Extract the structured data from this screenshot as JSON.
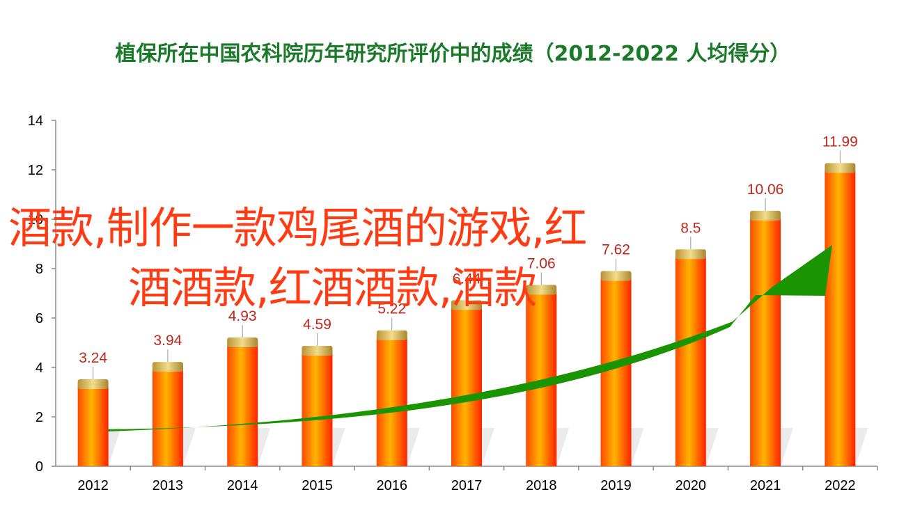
{
  "title": "植保所在中国农科院历年研究所评价中的成绩（2012-2022  人均得分）",
  "overlay": {
    "line1": "酒款,制作一款鸡尾酒的游戏,红",
    "line2": "酒酒款,红酒酒款,酒款"
  },
  "colors": {
    "bar_light": "#ffb400",
    "bar_dark": "#ff2a00",
    "cap": "#d9b64c",
    "arrow": "#1a9400",
    "label": "#c0261a",
    "overlay": "#ff3b14",
    "title": "#1a7a2a"
  },
  "chart_data": {
    "type": "bar",
    "title": "植保所在中国农科院历年研究所评价中的成绩（2012-2022  人均得分）",
    "categories": [
      "2012",
      "2013",
      "2014",
      "2015",
      "2016",
      "2017",
      "2018",
      "2019",
      "2020",
      "2021",
      "2022"
    ],
    "values": [
      3.24,
      3.94,
      4.93,
      4.59,
      5.22,
      6.44,
      7.06,
      7.62,
      8.5,
      10.06,
      11.99
    ],
    "value_labels": [
      "3.24",
      "3.94",
      "4.93",
      "4.59",
      "5.22",
      "6.44",
      "7.06",
      "7.62",
      "8.5",
      "10.06",
      "11.99"
    ],
    "ylim": [
      0,
      14
    ],
    "yticks": [
      "0",
      "2",
      "4",
      "6",
      "8",
      "10",
      "12",
      "14"
    ],
    "xlabel": "",
    "ylabel": "",
    "grid": false,
    "legend": "none",
    "trend_arrow": true
  }
}
